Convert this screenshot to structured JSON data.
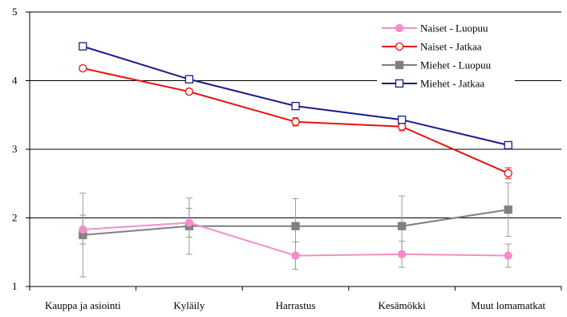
{
  "chart_data": {
    "type": "line",
    "title": "",
    "xlabel": "",
    "ylabel": "",
    "categories": [
      "Kauppa ja asiointi",
      "Kyläily",
      "Harrastus",
      "Kesämökki",
      "Muut lomamatkat"
    ],
    "ylim": [
      1,
      5
    ],
    "yticks": [
      "1",
      "2",
      "3",
      "4",
      "5"
    ],
    "grid": "horizontal",
    "legend_position": "top-right",
    "series": [
      {
        "name": "Naiset - Luopuu",
        "color": "#f28ec8",
        "marker": "filled-circle",
        "values": [
          1.83,
          1.93,
          1.45,
          1.47,
          1.45
        ],
        "error_low": [
          1.62,
          1.72,
          1.25,
          1.28,
          1.28
        ],
        "error_high": [
          2.04,
          2.14,
          1.65,
          1.66,
          1.62
        ]
      },
      {
        "name": "Naiset - Jatkaa",
        "color": "#e8100f",
        "marker": "open-circle",
        "values": [
          4.18,
          3.84,
          3.4,
          3.33,
          2.65
        ],
        "error_low": [
          4.14,
          3.8,
          3.34,
          3.27,
          2.57
        ],
        "error_high": [
          4.22,
          3.88,
          3.46,
          3.39,
          2.73
        ]
      },
      {
        "name": "Miehet - Luopuu",
        "color": "#808080",
        "marker": "filled-square",
        "values": [
          1.75,
          1.88,
          1.88,
          1.88,
          2.12
        ],
        "error_low": [
          1.14,
          1.47,
          1.47,
          1.44,
          1.73
        ],
        "error_high": [
          2.36,
          2.29,
          2.28,
          2.32,
          2.51
        ]
      },
      {
        "name": "Miehet - Jatkaa",
        "color": "#1a1a8c",
        "marker": "open-square",
        "values": [
          4.5,
          4.02,
          3.63,
          3.43,
          3.06
        ],
        "error_low": [
          4.47,
          3.99,
          3.59,
          3.39,
          3.01
        ],
        "error_high": [
          4.53,
          4.05,
          3.67,
          3.47,
          3.11
        ]
      }
    ]
  }
}
